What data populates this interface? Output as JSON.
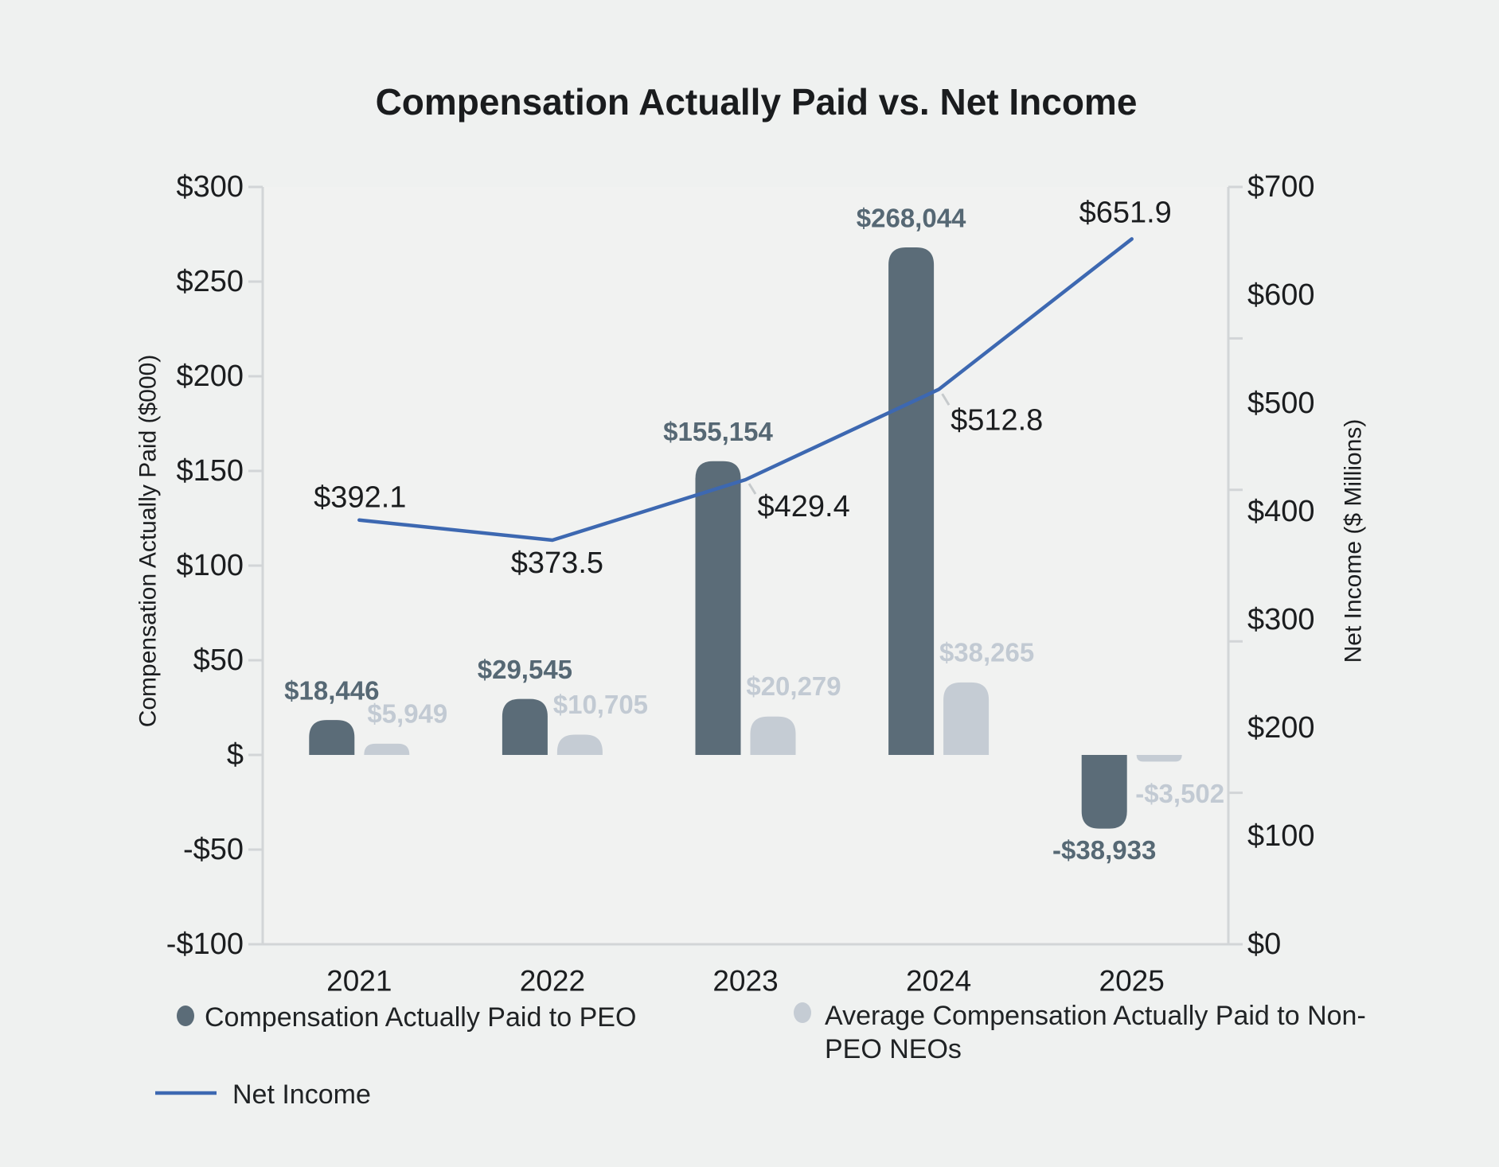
{
  "chart_data": {
    "type": "bar+line",
    "title": "Compensation Actually Paid vs. Net Income",
    "categories": [
      "2021",
      "2022",
      "2023",
      "2024",
      "2025"
    ],
    "bar_unit_divisor": 1000,
    "bar_series": [
      {
        "name": "Compensation Actually Paid to PEO",
        "values": [
          18446,
          29545,
          155154,
          268044,
          -38933
        ],
        "labels": [
          "$18,446",
          "$29,545",
          "$155,154",
          "$268,044",
          "-$38,933"
        ],
        "color": "#5b6c78",
        "label_color": "#566874"
      },
      {
        "name": "Average Compensation Actually Paid to Non-PEO NEOs",
        "values": [
          5949,
          10705,
          20279,
          38265,
          -3502
        ],
        "labels": [
          "$5,949",
          "$10,705",
          "$20,279",
          "$38,265",
          "-$3,502"
        ],
        "color": "#c5ccd4",
        "label_color": "#c2cad3"
      }
    ],
    "line_series": {
      "name": "Net Income",
      "values": [
        392.1,
        373.5,
        429.4,
        512.8,
        651.9
      ],
      "labels": [
        "$392.1",
        "$373.5",
        "$429.4",
        "$512.8",
        "$651.9"
      ],
      "color": "#3d68b1",
      "label_color": "#1b1d1f"
    },
    "left_axis": {
      "title": "Compensation Actually Paid ($000)",
      "min": -100,
      "max": 300,
      "tick_values": [
        300,
        250,
        200,
        150,
        100,
        50,
        0,
        -50,
        -100
      ],
      "tick_labels": [
        "$300",
        "$250",
        "$200",
        "$150",
        "$100",
        "$50",
        "$",
        "-$50",
        "-$100"
      ]
    },
    "right_axis": {
      "title": "Net Income ($ Millions)",
      "min": 0,
      "max": 700,
      "tick_values": [
        700,
        600,
        500,
        400,
        300,
        200,
        100,
        0
      ],
      "tick_labels": [
        "$700",
        "$600",
        "$500",
        "$400",
        "$300",
        "$200",
        "$100",
        "$0"
      ],
      "tick_mark_divisions": 5
    },
    "legend": [
      {
        "label": "Compensation Actually Paid to PEO",
        "label_lines": [
          "Compensation Actually Paid to PEO"
        ],
        "marker": "circle",
        "color": "#5b6c78"
      },
      {
        "label": "Average Compensation Actually Paid to Non-PEO NEOs",
        "label_lines": [
          "Average Compensation Actually Paid to Non-",
          "PEO NEOs"
        ],
        "marker": "circle",
        "color": "#c5ccd4"
      },
      {
        "label": "Net Income",
        "label_lines": [
          "Net Income"
        ],
        "marker": "line",
        "color": "#3d68b1"
      }
    ],
    "grid": false,
    "legend_position": "bottom-left",
    "background": "#eff1f0",
    "plot_background": "#f1f2f1",
    "axis_color": "#d2d5d7",
    "leader_color": "#c6cacc",
    "text_color": "#1b1d1f"
  }
}
